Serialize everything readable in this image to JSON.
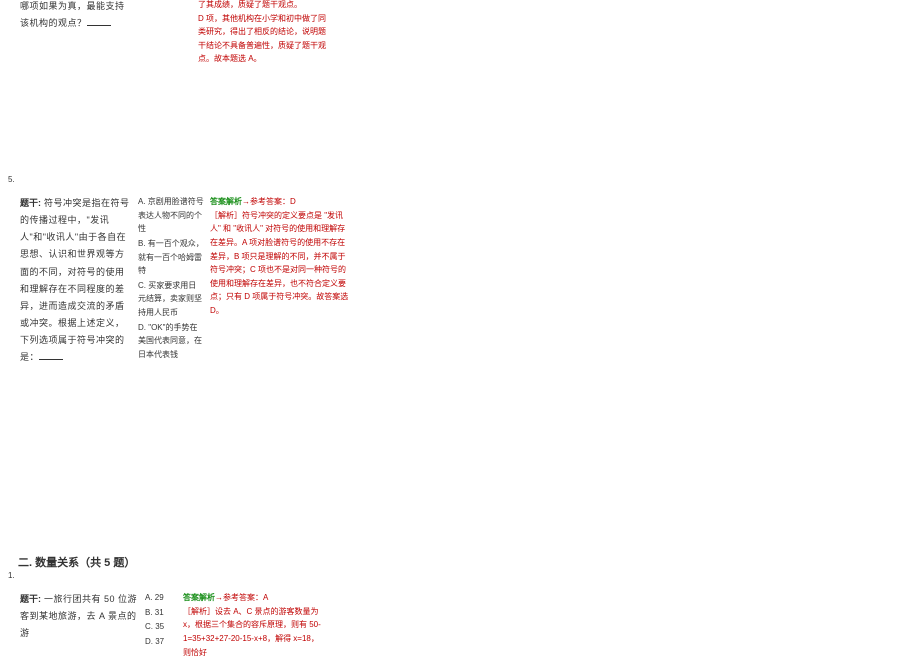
{
  "q4tail": {
    "stem": "哪项如果为真，最能支持该机构的观点？",
    "ansPart": "了其成绩，质疑了题干观点。\nD 项，其他机构在小学和初中做了同类研究，得出了相反的结论，说明题干结论不具备普遍性，质疑了题干观点。故本题选 A。"
  },
  "q5": {
    "num": "5.",
    "label": "题干:",
    "stem": " 符号冲突是指在符号的传播过程中，\"发讯人\"和\"收讯人\"由于各自在思想、认识和世界观等方面的不同，对符号的使用和理解存在不同程度的差异，进而造成交流的矛盾或冲突。根据上述定义，下列选项属于符号冲突的是：",
    "optA": "A. 京剧用脸谱符号表达人物不同的个性",
    "optB": "B. 有一百个观众，就有一百个哈姆雷特",
    "optC": "C. 买家要求用日元结算，卖家则坚持用人民币",
    "optD": "D. \"OK\"的手势在美国代表同意，在日本代表钱",
    "ansPrefix": "答案解析",
    "ansRef": "参考答案：D",
    "ansBody": "［解析］符号冲突的定义要点是 \"发讯人\" 和 \"收讯人\" 对符号的使用和理解存在差异。A 项对脸谱符号的使用不存在差异，B 项只是理解的不同，并不属于符号冲突；C 项也不是对同一种符号的使用和理解存在差异，也不符合定义要点；只有 D 项属于符号冲突。故答案选 D。"
  },
  "sec2": {
    "title": "二. 数量关系（共 5 题）"
  },
  "q1b": {
    "num": "1.",
    "label": "题干:",
    "stem": " 一旅行团共有 50 位游客到某地旅游，去 A 景点的游",
    "optA": "A. 29",
    "optB": "B. 31",
    "optC": "C. 35",
    "optD": "D. 37",
    "ansPrefix": "答案解析",
    "ansRef": "参考答案：A",
    "ansBody": "［解析］设去 A、C 景点的游客数量为 x，根据三个集合的容斥原理，则有 50-1=35+32+27-20-15-x+8，解得 x=18，则恰好"
  }
}
